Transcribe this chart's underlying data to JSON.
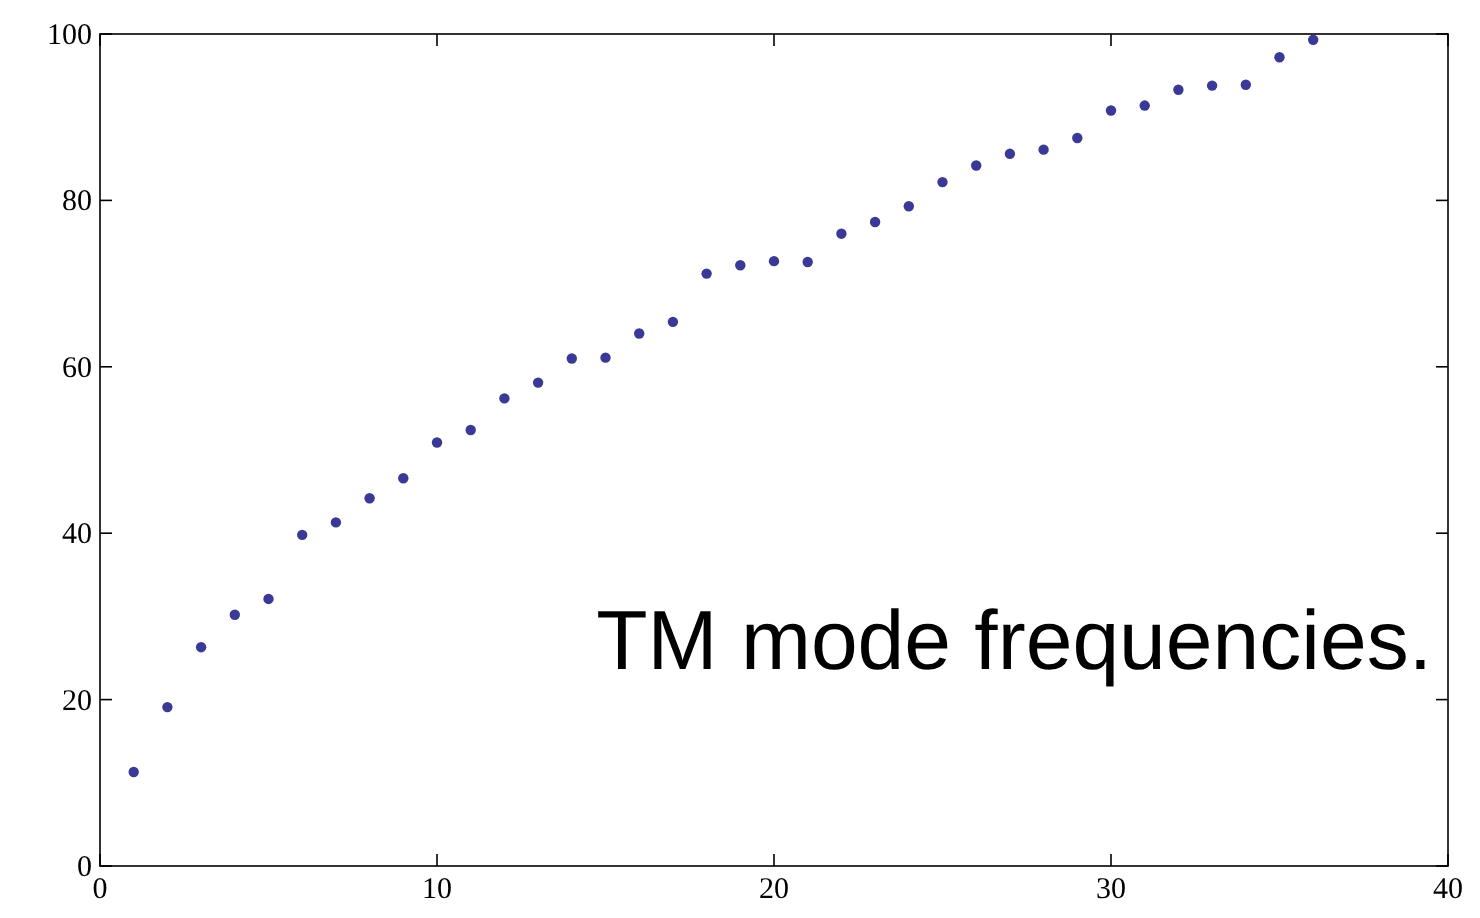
{
  "chart_data": {
    "type": "scatter",
    "annotations": [
      "TM mode frequencies."
    ],
    "x": [
      1,
      2,
      3,
      4,
      5,
      6,
      7,
      8,
      9,
      10,
      11,
      12,
      13,
      14,
      15,
      16,
      17,
      18,
      19,
      20,
      21,
      22,
      23,
      24,
      25,
      26,
      27,
      28,
      29,
      30,
      31,
      32,
      33,
      34,
      35,
      36
    ],
    "series": [
      {
        "color": "#3a3a96",
        "values": [
          11.3,
          19.1,
          26.3,
          30.2,
          32.1,
          39.8,
          41.3,
          44.2,
          46.6,
          50.9,
          52.4,
          56.2,
          58.1,
          61.0,
          61.1,
          64.0,
          65.4,
          71.2,
          72.2,
          72.7,
          72.6,
          76.0,
          77.4,
          79.3,
          82.2,
          84.2,
          85.6,
          86.1,
          87.5,
          90.8,
          91.4,
          93.3,
          93.8,
          93.9,
          97.2,
          99.3
        ]
      }
    ],
    "xlim": [
      0,
      40
    ],
    "xticks": [
      0,
      10,
      20,
      30,
      40
    ],
    "ylim": [
      0,
      100
    ],
    "yticks": [
      0,
      20,
      40,
      60,
      80,
      100
    ],
    "marker": "circle"
  }
}
